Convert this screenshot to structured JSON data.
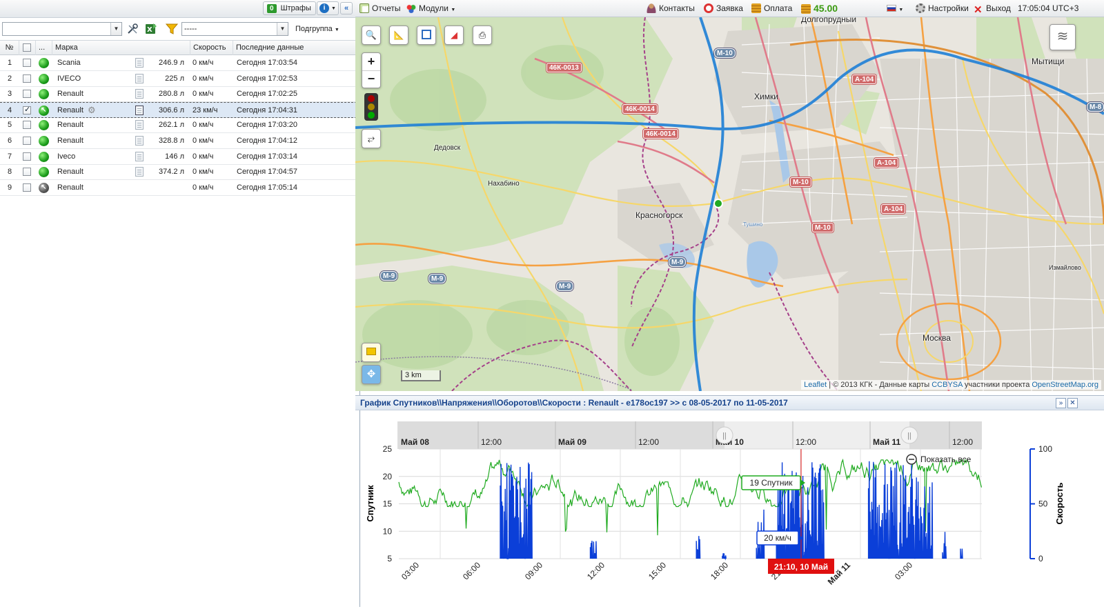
{
  "left_top": {
    "fines_count": "0",
    "fines_label": "Штрафы"
  },
  "toolbar": {
    "group_select": "-----",
    "subgroup_label": "Подгруппа"
  },
  "columns": {
    "num": "№",
    "dots": "...",
    "brand": "Марка",
    "speed": "Скорость",
    "last": "Последние данные"
  },
  "rows": [
    {
      "n": "1",
      "brand": "Scania",
      "fuel": "246.9 л",
      "speed": "0 км/ч",
      "last": "Сегодня 17:03:54",
      "status": "green",
      "checked": false
    },
    {
      "n": "2",
      "brand": "IVECO",
      "fuel": "225 л",
      "speed": "0 км/ч",
      "last": "Сегодня 17:02:53",
      "status": "green",
      "checked": false
    },
    {
      "n": "3",
      "brand": "Renault",
      "fuel": "280.8 л",
      "speed": "0 км/ч",
      "last": "Сегодня 17:02:25",
      "status": "green",
      "checked": false
    },
    {
      "n": "4",
      "brand": "Renault",
      "fuel": "306.6 л",
      "speed": "23 км/ч",
      "last": "Сегодня 17:04:31",
      "status": "moving",
      "checked": true
    },
    {
      "n": "5",
      "brand": "Renault",
      "fuel": "262.1 л",
      "speed": "0 км/ч",
      "last": "Сегодня 17:03:20",
      "status": "green",
      "checked": false
    },
    {
      "n": "6",
      "brand": "Renault",
      "fuel": "328.8 л",
      "speed": "0 км/ч",
      "last": "Сегодня 17:04:12",
      "status": "green",
      "checked": false
    },
    {
      "n": "7",
      "brand": "Iveco",
      "fuel": "146 л",
      "speed": "0 км/ч",
      "last": "Сегодня 17:03:14",
      "status": "green",
      "checked": false
    },
    {
      "n": "8",
      "brand": "Renault",
      "fuel": "374.2 л",
      "speed": "0 км/ч",
      "last": "Сегодня 17:04:57",
      "status": "green",
      "checked": false
    },
    {
      "n": "9",
      "brand": "Renault",
      "fuel": "",
      "speed": "0 км/ч",
      "last": "Сегодня 17:05:14",
      "status": "offline",
      "checked": false
    }
  ],
  "topbar": {
    "reports": "Отчеты",
    "modules": "Модули",
    "contacts": "Контакты",
    "request": "Заявка",
    "payment": "Оплата",
    "balance": "45.00",
    "settings": "Настройки",
    "logout": "Выход",
    "clock": "17:05:04 UTC+3"
  },
  "map": {
    "labels": {
      "dolgoprudny": "Долгопрудный",
      "mytishchi": "Мытищи",
      "khimki": "Химки",
      "dedovsk": "Дедовск",
      "nakhabino": "Нахабино",
      "krasnogorsk": "Красногорск",
      "moskva": "Москва",
      "izmaylovo": "Измайлово",
      "tushino": "Тушино"
    },
    "shields": {
      "m10a": "М-10",
      "m10b": "М-10",
      "m10c": "М-10",
      "a104a": "А-104",
      "a104b": "А-104",
      "a104c": "А-104",
      "k13": "46К-0013",
      "k14a": "46К-0014",
      "k14b": "46К-0014",
      "m9a": "М-9",
      "m9b": "М-9",
      "m9c": "М-9",
      "m9d": "М-9",
      "m8": "М-8"
    },
    "scale": "3 km",
    "attribution": {
      "leaflet": "Leaflet",
      "middle": " | © 2013 КГК - Данные карты ",
      "ccbysa": "CCBYSA",
      "after": " участники проекта ",
      "osm": "OpenStreetMap.org"
    }
  },
  "chart_panel": {
    "title": "График Спутников\\\\Напряжения\\\\Оборотов\\\\Скорости : Renault - е178ос197 >> с 08-05-2017 по 11-05-2017",
    "show_all": "Показать все",
    "tooltip_satellite": "19 Спутник",
    "tooltip_speed": "20 км/ч",
    "crosshair_label": "21:10, 10 Май"
  },
  "chart_data": {
    "type": "line",
    "navigator_labels": [
      "Май 08",
      "12:00",
      "Май 09",
      "12:00",
      "Май 10",
      "12:00",
      "Май 11",
      "12:00"
    ],
    "x_ticks": [
      "03:00",
      "06:00",
      "09:00",
      "12:00",
      "15:00",
      "18:00",
      "21:00",
      "Май 11",
      "03:00"
    ],
    "y_left": {
      "label": "Спутник",
      "min": 5,
      "max": 25,
      "ticks": [
        5,
        10,
        15,
        20,
        25
      ]
    },
    "y_right": {
      "label": "Скорость",
      "min": 0,
      "max": 100,
      "ticks": [
        0,
        50,
        100
      ]
    },
    "series": [
      {
        "name": "Спутник",
        "color": "#1faa1f",
        "axis": "left"
      },
      {
        "name": "Скорость",
        "color": "#0b3fd8",
        "axis": "right"
      }
    ],
    "speed_bursts": [
      [
        5.0,
        6.6,
        88
      ],
      [
        9.5,
        9.8,
        20
      ],
      [
        14.8,
        15.0,
        22
      ],
      [
        16.1,
        16.3,
        10
      ],
      [
        17.8,
        18.2,
        45
      ],
      [
        18.8,
        21.2,
        88
      ],
      [
        23.4,
        26.6,
        90
      ],
      [
        27.1,
        27.3,
        25
      ],
      [
        28.0,
        28.1,
        30
      ]
    ]
  },
  "colors": {
    "accent": "#15428b",
    "satellite": "#1faa1f",
    "speed": "#0b3fd8",
    "crosshair": "#e01010"
  }
}
